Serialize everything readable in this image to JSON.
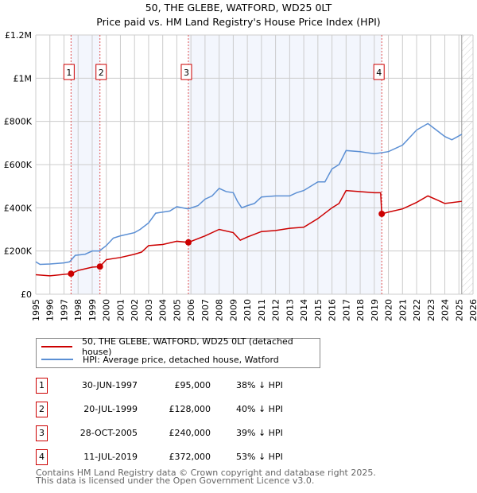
{
  "chart_data": {
    "type": "line",
    "title": "50, THE GLEBE, WATFORD, WD25 0LT",
    "subtitle": "Price paid vs. HM Land Registry's House Price Index (HPI)",
    "xlim": [
      1995,
      2026
    ],
    "ylim": [
      0,
      1200000
    ],
    "x_ticks": [
      "1995",
      "1996",
      "1997",
      "1998",
      "1999",
      "2000",
      "2001",
      "2002",
      "2003",
      "2004",
      "2005",
      "2006",
      "2007",
      "2008",
      "2009",
      "2010",
      "2011",
      "2012",
      "2013",
      "2014",
      "2015",
      "2016",
      "2017",
      "2018",
      "2019",
      "2020",
      "2021",
      "2022",
      "2023",
      "2024",
      "2025",
      "2026"
    ],
    "y_ticks": [
      {
        "v": 0,
        "label": "£0"
      },
      {
        "v": 200000,
        "label": "£200K"
      },
      {
        "v": 400000,
        "label": "£400K"
      },
      {
        "v": 600000,
        "label": "£600K"
      },
      {
        "v": 800000,
        "label": "£800K"
      },
      {
        "v": 1000000,
        "label": "£1M"
      },
      {
        "v": 1200000,
        "label": "£1.2M"
      }
    ],
    "grid": true,
    "shaded_ranges": [
      [
        1997.5,
        1999.55
      ],
      [
        2005.82,
        2019.53
      ]
    ],
    "forecast_from": 2025.2,
    "series": [
      {
        "name": "50, THE GLEBE, WATFORD, WD25 0LT (detached house)",
        "color": "#cc0000",
        "x": [
          1995,
          1996,
          1997.5,
          1998,
          1999,
          1999.55,
          2000,
          2001,
          2002,
          2002.5,
          2003,
          2004,
          2005,
          2005.82,
          2007,
          2008,
          2009,
          2009.5,
          2010,
          2011,
          2012,
          2013,
          2014,
          2015,
          2016,
          2016.5,
          2017,
          2018,
          2019,
          2019.45,
          2019.53,
          2020,
          2021,
          2022,
          2022.8,
          2023.5,
          2024,
          2025.2
        ],
        "y": [
          90000,
          85000,
          95000,
          110000,
          125000,
          128000,
          160000,
          170000,
          185000,
          195000,
          225000,
          230000,
          245000,
          240000,
          270000,
          300000,
          285000,
          250000,
          265000,
          290000,
          295000,
          305000,
          310000,
          350000,
          400000,
          420000,
          480000,
          475000,
          470000,
          470000,
          372000,
          380000,
          395000,
          425000,
          455000,
          435000,
          420000,
          430000
        ]
      },
      {
        "name": "HPI: Average price, detached house, Watford",
        "color": "#5b8fd4",
        "x": [
          1995,
          1995.3,
          1996,
          1997,
          1997.4,
          1997.8,
          1998.5,
          1999,
          1999.5,
          2000,
          2000.5,
          2001,
          2002,
          2002.4,
          2003,
          2003.5,
          2004,
          2004.5,
          2005,
          2005.8,
          2006.5,
          2007,
          2007.5,
          2008,
          2008.5,
          2009,
          2009.3,
          2009.6,
          2010,
          2010.5,
          2011,
          2012,
          2013,
          2013.5,
          2014,
          2015,
          2015.5,
          2016,
          2016.5,
          2017,
          2018,
          2018.5,
          2019,
          2019.5,
          2020,
          2021,
          2022,
          2022.8,
          2023.5,
          2024,
          2024.5,
          2025.2
        ],
        "y": [
          150000,
          138000,
          140000,
          145000,
          150000,
          180000,
          185000,
          200000,
          200000,
          225000,
          260000,
          270000,
          285000,
          300000,
          330000,
          375000,
          380000,
          385000,
          405000,
          395000,
          410000,
          440000,
          455000,
          490000,
          475000,
          470000,
          430000,
          400000,
          410000,
          420000,
          450000,
          455000,
          455000,
          470000,
          480000,
          520000,
          520000,
          580000,
          600000,
          665000,
          660000,
          655000,
          650000,
          655000,
          660000,
          690000,
          760000,
          790000,
          755000,
          730000,
          715000,
          740000
        ]
      }
    ],
    "sales": [
      {
        "n": "1",
        "x": 1997.5,
        "y": 95000
      },
      {
        "n": "2",
        "x": 1999.55,
        "y": 128000
      },
      {
        "n": "3",
        "x": 2005.82,
        "y": 240000
      },
      {
        "n": "4",
        "x": 2019.53,
        "y": 372000
      }
    ]
  },
  "legend": {
    "property": "50, THE GLEBE, WATFORD, WD25 0LT (detached house)",
    "hpi": "HPI: Average price, detached house, Watford"
  },
  "transactions": [
    {
      "n": "1",
      "date": "30-JUN-1997",
      "price": "£95,000",
      "pct": "38% ↓ HPI"
    },
    {
      "n": "2",
      "date": "20-JUL-1999",
      "price": "£128,000",
      "pct": "40% ↓ HPI"
    },
    {
      "n": "3",
      "date": "28-OCT-2005",
      "price": "£240,000",
      "pct": "39% ↓ HPI"
    },
    {
      "n": "4",
      "date": "11-JUL-2019",
      "price": "£372,000",
      "pct": "53% ↓ HPI"
    }
  ],
  "footer": {
    "line1": "Contains HM Land Registry data © Crown copyright and database right 2025.",
    "line2": "This data is licensed under the Open Government Licence v3.0."
  }
}
